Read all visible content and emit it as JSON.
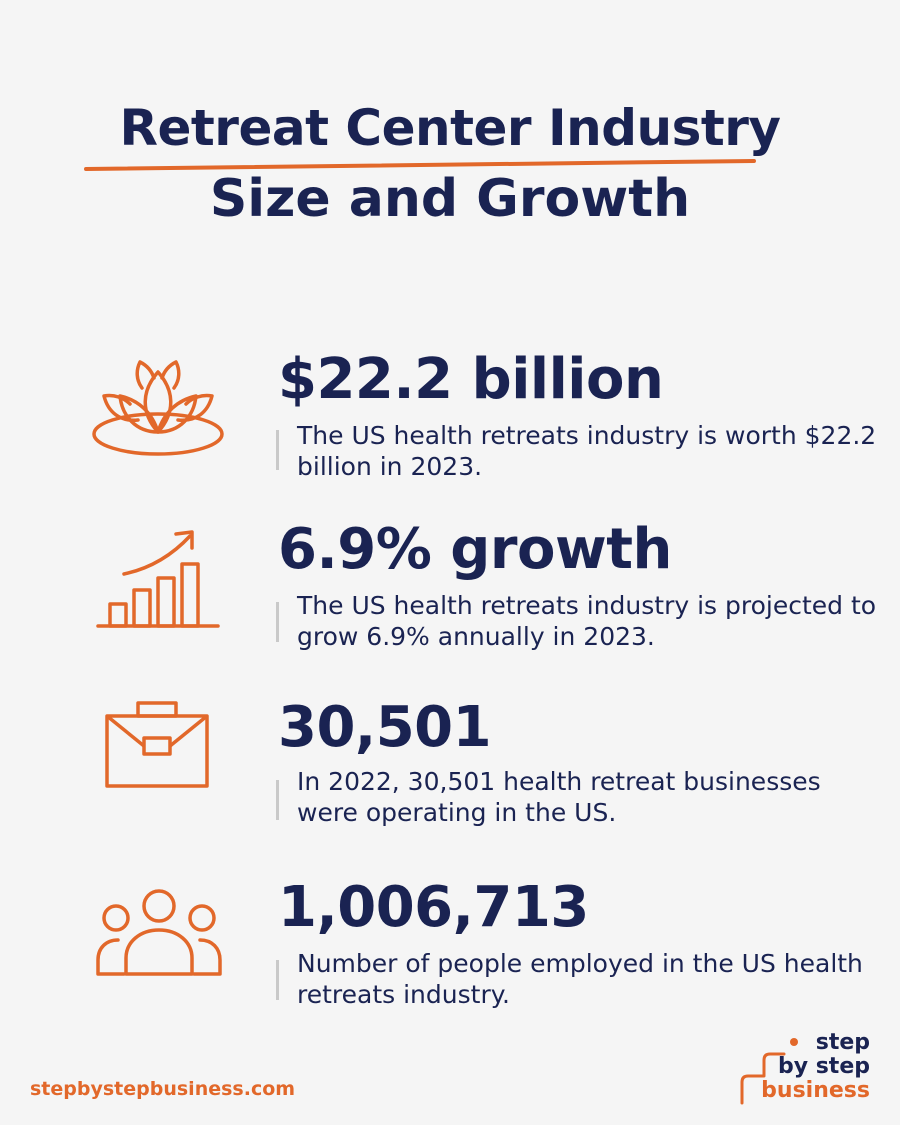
{
  "header": {
    "title": "Retreat Center Industry",
    "subtitle": "Size and Growth"
  },
  "stats": [
    {
      "icon": "lotus-icon",
      "value": "$22.2 billion",
      "description": "The US health retreats industry is worth $22.2 billion in 2023."
    },
    {
      "icon": "growth-chart-icon",
      "value": "6.9% growth",
      "description": "The US health retreats industry is projected to grow 6.9% annually in 2023."
    },
    {
      "icon": "briefcase-icon",
      "value": "30,501",
      "description": "In 2022, 30,501 health retreat businesses were operating in the US."
    },
    {
      "icon": "people-group-icon",
      "value": "1,006,713",
      "description": "Number of people employed in the US health retreats industry."
    }
  ],
  "footer": {
    "url": "stepbystepbusiness.com",
    "logo_line1": "step",
    "logo_line2": "by step",
    "logo_line3": "business"
  },
  "colors": {
    "navy": "#1a2352",
    "orange": "#e2682a",
    "background": "#f5f5f5"
  }
}
